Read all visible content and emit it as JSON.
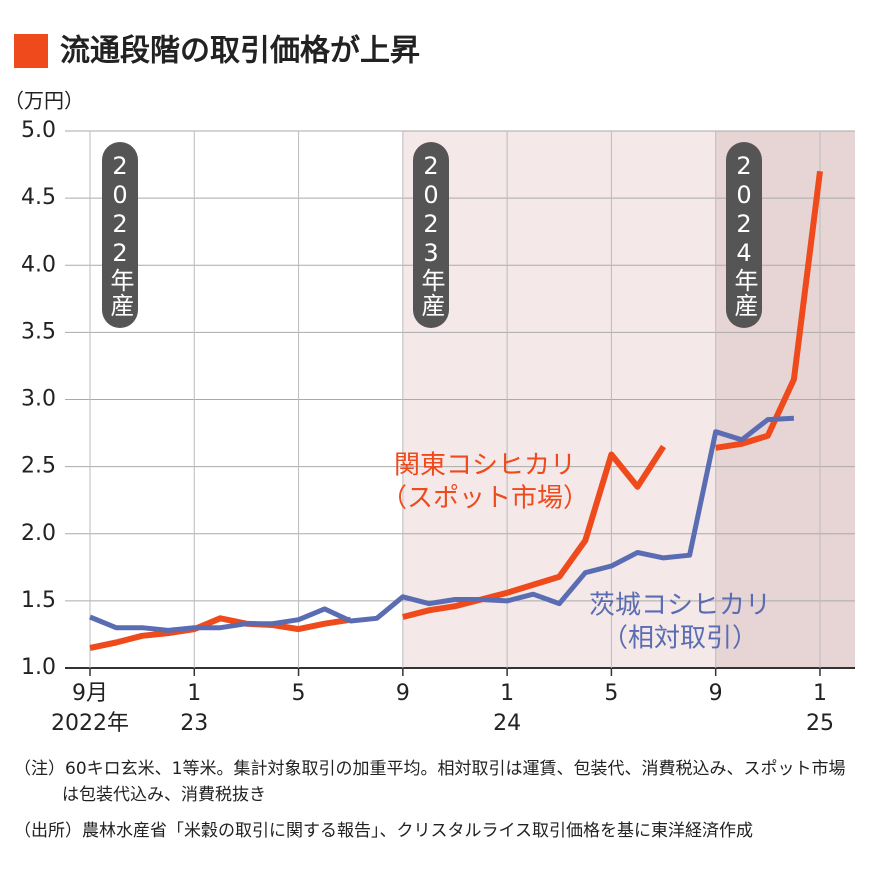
{
  "chart_data": {
    "type": "line",
    "title": "流通段階の取引価格が上昇",
    "unit": "（万円）",
    "categories": [
      "9月",
      null,
      null,
      null,
      "1",
      null,
      null,
      null,
      "5",
      null,
      null,
      null,
      "9",
      null,
      null,
      null,
      "1",
      null,
      null,
      null,
      "5",
      null,
      null,
      null,
      "9",
      null,
      null,
      null,
      "1"
    ],
    "year_labels": [
      "2022年",
      null,
      null,
      null,
      "23",
      null,
      null,
      null,
      null,
      null,
      null,
      null,
      null,
      null,
      null,
      null,
      "24",
      null,
      null,
      null,
      null,
      null,
      null,
      null,
      null,
      null,
      null,
      null,
      "25"
    ],
    "series": [
      {
        "name": "関東コシヒカリ",
        "note": "（スポット市場）",
        "color": "#ee4a1c",
        "values": [
          1.15,
          1.19,
          1.24,
          1.26,
          1.29,
          1.37,
          1.33,
          1.32,
          1.29,
          1.33,
          1.36,
          null,
          1.38,
          1.43,
          1.46,
          1.51,
          1.56,
          1.62,
          1.68,
          1.95,
          2.59,
          2.35,
          2.65,
          null,
          2.64,
          2.67,
          2.73,
          3.15,
          4.7
        ]
      },
      {
        "name": "茨城コシヒカリ",
        "note": "（相対取引）",
        "color": "#5a6db3",
        "values": [
          1.38,
          1.3,
          1.3,
          1.28,
          1.3,
          1.3,
          1.33,
          1.33,
          1.36,
          1.44,
          1.35,
          1.37,
          1.53,
          1.48,
          1.51,
          1.51,
          1.5,
          1.55,
          1.48,
          1.71,
          1.76,
          1.86,
          1.82,
          1.84,
          2.76,
          2.7,
          2.85,
          2.86,
          null
        ]
      }
    ],
    "periods": [
      {
        "label": "2022年産"
      },
      {
        "label": "2023年産",
        "color": "#f4e8e8"
      },
      {
        "label": "2024年産",
        "color": "#e7d5d5"
      }
    ],
    "ylim": [
      1,
      5
    ],
    "yticks": [
      {
        "value": 1,
        "label": "1.0"
      },
      1.5,
      {
        "value": 2,
        "label": "2.0"
      },
      2.5,
      {
        "value": 3,
        "label": "3.0"
      },
      3.5,
      {
        "value": 4,
        "label": "4.0"
      },
      4.5,
      {
        "value": 5,
        "label": "5.0"
      }
    ],
    "grid": true,
    "notes": [
      "（注）60キロ玄米、1等米。集計対象取引の加重平均。相対取引は運賃、包装代、消費税込み、スポット市場は包装代込み、消費税抜き",
      "（出所）農林水産省「米穀の取引に関する報告」、クリスタルライス取引価格を基に東洋経済作成"
    ]
  }
}
